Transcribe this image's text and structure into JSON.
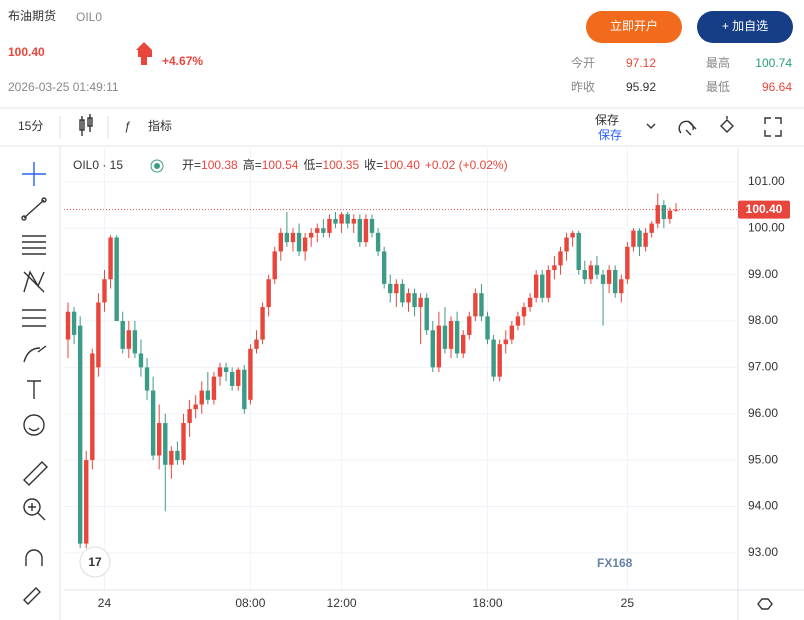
{
  "header": {
    "title": "布油期货",
    "code": "OIL0",
    "price": "100.40",
    "change": "+4.67%",
    "datetime": "2026-03-25 01:49:11",
    "open_account": "立即开户",
    "add_watch": "+ 加自选",
    "stats": [
      {
        "label": "今开",
        "value": "97.12"
      },
      {
        "label": "最高",
        "value": "100.74"
      },
      {
        "label": "昨收",
        "value": "95.92"
      },
      {
        "label": "最低",
        "value": "96.64"
      }
    ]
  },
  "toolbar": {
    "interval": "15分",
    "indicators": "指标",
    "save": "保存",
    "save_sub": "保存"
  },
  "chart_legend": {
    "symbol": "OIL0 · 15",
    "items": [
      {
        "label": "开=",
        "value": "100.38"
      },
      {
        "label": "高=",
        "value": "100.54"
      },
      {
        "label": "低=",
        "value": "100.35"
      },
      {
        "label": "收=",
        "value": "100.40"
      },
      {
        "label": "",
        "value": "+0.02 (+0.02%)"
      }
    ]
  },
  "watermark": "FX168",
  "chart_data": {
    "type": "candlestick",
    "categories": [
      null,
      null,
      null,
      null,
      null,
      null,
      "24",
      null,
      null,
      null,
      null,
      null,
      null,
      null,
      null,
      null,
      null,
      null,
      null,
      null,
      null,
      null,
      null,
      null,
      null,
      null,
      null,
      null,
      null,
      null,
      "08:00",
      null,
      null,
      null,
      null,
      null,
      null,
      null,
      null,
      null,
      null,
      null,
      null,
      null,
      null,
      "12:00",
      null,
      null,
      null,
      null,
      null,
      null,
      null,
      null,
      null,
      null,
      null,
      null,
      null,
      null,
      null,
      null,
      null,
      null,
      null,
      null,
      null,
      null,
      null,
      "18:00",
      null,
      null,
      null,
      null,
      null,
      null,
      null,
      null,
      null,
      null,
      null,
      null,
      null,
      null,
      null,
      null,
      null,
      null,
      null,
      null,
      null,
      null,
      "25",
      null,
      null,
      null,
      null,
      null,
      null,
      null,
      null
    ],
    "open": [
      97.6,
      98.2,
      97.9,
      93.2,
      95.0,
      97.0,
      98.4,
      98.9,
      99.8,
      98.0,
      97.4,
      97.8,
      97.3,
      97.0,
      96.5,
      95.1,
      95.8,
      94.9,
      95.2,
      95.0,
      95.8,
      96.1,
      96.2,
      96.5,
      96.3,
      96.8,
      97.0,
      96.9,
      96.6,
      96.95,
      96.3,
      97.4,
      97.6,
      98.3,
      98.9,
      99.5,
      99.9,
      99.7,
      99.9,
      99.5,
      99.8,
      99.9,
      100.0,
      99.9,
      100.2,
      100.1,
      100.3,
      100.1,
      100.2,
      99.7,
      100.2,
      99.9,
      99.5,
      98.8,
      98.6,
      98.8,
      98.4,
      98.6,
      98.3,
      98.5,
      97.8,
      97.0,
      97.9,
      97.4,
      98.0,
      97.3,
      97.7,
      98.1,
      98.6,
      98.1,
      97.6,
      96.8,
      97.5,
      97.6,
      97.9,
      98.1,
      98.3,
      98.5,
      99.0,
      98.5,
      99.1,
      99.2,
      99.5,
      99.8,
      99.9,
      99.1,
      98.9,
      99.2,
      99.0,
      98.8,
      99.1,
      98.6,
      98.9,
      99.6,
      99.95,
      99.6,
      99.9,
      100.1,
      100.5,
      100.2,
      100.38
    ],
    "high": [
      98.4,
      98.3,
      98.1,
      95.2,
      97.4,
      98.6,
      99.1,
      99.85,
      99.85,
      98.2,
      98.0,
      98.0,
      97.6,
      97.2,
      96.8,
      96.2,
      96.0,
      95.3,
      95.4,
      96.0,
      96.3,
      96.4,
      96.7,
      96.9,
      96.9,
      97.1,
      97.1,
      97.0,
      97.0,
      97.05,
      97.5,
      97.8,
      98.4,
      99.0,
      99.6,
      100.0,
      100.35,
      100.0,
      100.1,
      99.9,
      100.0,
      100.1,
      100.2,
      100.3,
      100.35,
      100.35,
      100.35,
      100.3,
      100.3,
      100.3,
      100.3,
      100.0,
      99.6,
      99.0,
      98.9,
      98.9,
      98.7,
      98.7,
      98.6,
      98.6,
      98.0,
      98.2,
      98.3,
      98.1,
      98.2,
      97.8,
      98.2,
      98.7,
      98.8,
      98.2,
      97.7,
      97.6,
      97.8,
      98.0,
      98.2,
      98.4,
      98.6,
      99.1,
      99.1,
      99.2,
      99.4,
      99.6,
      99.9,
      99.95,
      99.95,
      99.3,
      99.3,
      99.4,
      99.1,
      99.2,
      99.2,
      99.0,
      99.7,
      100.0,
      100.0,
      100.0,
      100.15,
      100.75,
      100.6,
      100.45,
      100.54
    ],
    "low": [
      97.2,
      97.5,
      93.1,
      93.1,
      94.8,
      96.8,
      98.2,
      98.7,
      98.0,
      97.3,
      97.2,
      97.2,
      96.8,
      96.3,
      95.0,
      94.8,
      93.9,
      94.6,
      94.9,
      94.9,
      95.5,
      95.9,
      96.0,
      96.2,
      96.2,
      96.6,
      96.7,
      96.5,
      96.5,
      96.0,
      96.2,
      97.3,
      97.5,
      98.1,
      98.8,
      99.3,
      99.6,
      99.5,
      99.4,
      99.3,
      99.6,
      99.7,
      99.8,
      99.8,
      100.0,
      99.9,
      100.0,
      99.9,
      99.6,
      99.6,
      99.8,
      99.4,
      98.7,
      98.4,
      98.3,
      98.3,
      98.2,
      98.1,
      97.5,
      97.7,
      96.9,
      96.9,
      97.3,
      97.2,
      97.2,
      97.2,
      97.6,
      98.0,
      98.0,
      97.5,
      96.7,
      96.7,
      97.3,
      97.5,
      97.8,
      97.9,
      98.2,
      98.4,
      98.4,
      98.4,
      98.9,
      99.0,
      99.3,
      99.6,
      99.0,
      98.8,
      98.8,
      98.9,
      97.9,
      98.6,
      98.5,
      98.4,
      98.8,
      99.5,
      99.4,
      99.5,
      99.8,
      100.0,
      100.0,
      100.1,
      100.35
    ],
    "close": [
      98.2,
      97.7,
      93.2,
      95.0,
      97.3,
      98.4,
      98.9,
      99.8,
      98.0,
      97.4,
      97.8,
      97.3,
      97.0,
      96.5,
      95.1,
      95.8,
      94.9,
      95.2,
      95.0,
      95.8,
      96.1,
      96.2,
      96.5,
      96.3,
      96.8,
      97.0,
      96.9,
      96.6,
      96.95,
      96.1,
      97.4,
      97.6,
      98.3,
      98.9,
      99.5,
      99.9,
      99.7,
      99.9,
      99.5,
      99.8,
      99.9,
      100.0,
      99.9,
      100.2,
      100.1,
      100.3,
      100.1,
      100.2,
      99.7,
      100.2,
      99.9,
      99.5,
      98.8,
      98.6,
      98.8,
      98.4,
      98.6,
      98.3,
      98.5,
      97.8,
      97.0,
      97.9,
      97.4,
      98.0,
      97.3,
      97.7,
      98.1,
      98.6,
      98.1,
      97.6,
      96.8,
      97.5,
      97.6,
      97.9,
      98.1,
      98.3,
      98.5,
      99.0,
      98.5,
      99.1,
      99.2,
      99.5,
      99.8,
      99.9,
      99.1,
      98.9,
      99.2,
      99.0,
      98.8,
      99.1,
      98.6,
      98.9,
      99.6,
      99.95,
      99.6,
      99.9,
      100.1,
      100.5,
      100.2,
      100.38,
      100.4
    ],
    "colors": {
      "up": "#e8463c",
      "down": "#3c9b86"
    },
    "last_price": {
      "value": 100.4,
      "label": "100.40"
    },
    "ylim": [
      92.2,
      101.73
    ],
    "yticks": [
      {
        "value": 93,
        "label": "93.00"
      },
      {
        "value": 94,
        "label": "94.00"
      },
      {
        "value": 95,
        "label": "95.00"
      },
      {
        "value": 96,
        "label": "96.00"
      },
      {
        "value": 97,
        "label": "97.00"
      },
      {
        "value": 98,
        "label": "98.00"
      },
      {
        "value": 99,
        "label": "99.00"
      },
      {
        "value": 100,
        "label": "100.00"
      },
      {
        "value": 101,
        "label": "101.00"
      }
    ],
    "grid": true
  }
}
